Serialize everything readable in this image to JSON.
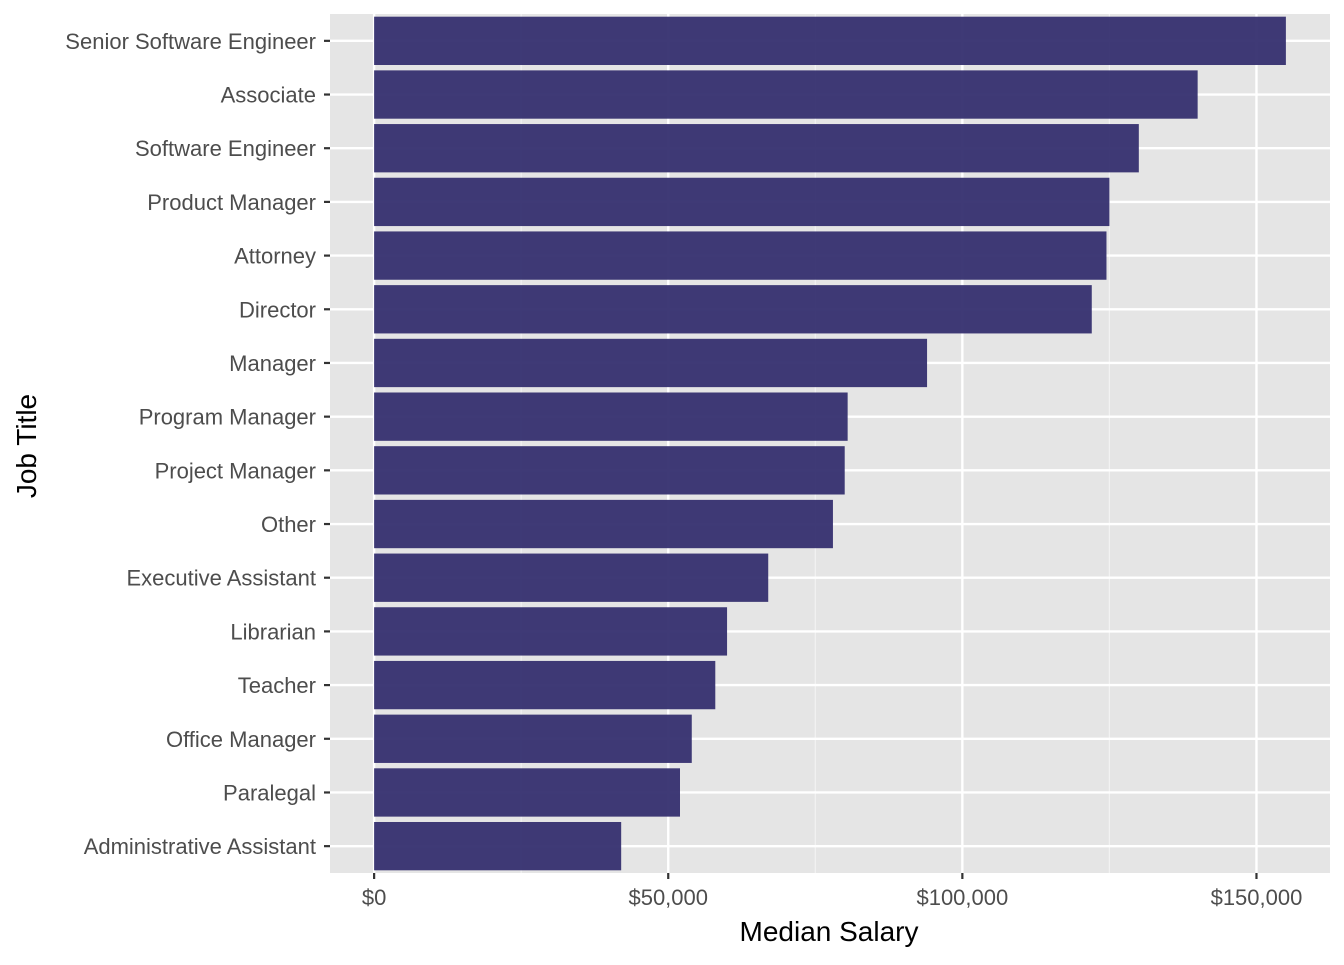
{
  "chart_data": {
    "type": "bar",
    "orientation": "horizontal",
    "title": "",
    "xlabel": "Median Salary",
    "ylabel": "Job Title",
    "categories": [
      "Senior Software Engineer",
      "Associate",
      "Software Engineer",
      "Product Manager",
      "Attorney",
      "Director",
      "Manager",
      "Program Manager",
      "Project Manager",
      "Other",
      "Executive Assistant",
      "Librarian",
      "Teacher",
      "Office Manager",
      "Paralegal",
      "Administrative Assistant"
    ],
    "values": [
      155000,
      140000,
      130000,
      125000,
      124500,
      122000,
      94000,
      80500,
      80000,
      78000,
      67000,
      60000,
      58000,
      54000,
      52000,
      42000
    ],
    "xlim": [
      -7500,
      162500
    ],
    "xticks": [
      0,
      50000,
      100000,
      150000
    ],
    "xtick_labels": [
      "$0",
      "$50,000",
      "$100,000",
      "$150,000"
    ],
    "grid": true,
    "colors": {
      "bar": "#352f6f",
      "panel_background": "#e5e5e5",
      "grid_major": "#ffffff",
      "grid_minor": "#f2f2f2",
      "tick_label": "#4d4d4d",
      "axis_title": "#000000"
    }
  }
}
